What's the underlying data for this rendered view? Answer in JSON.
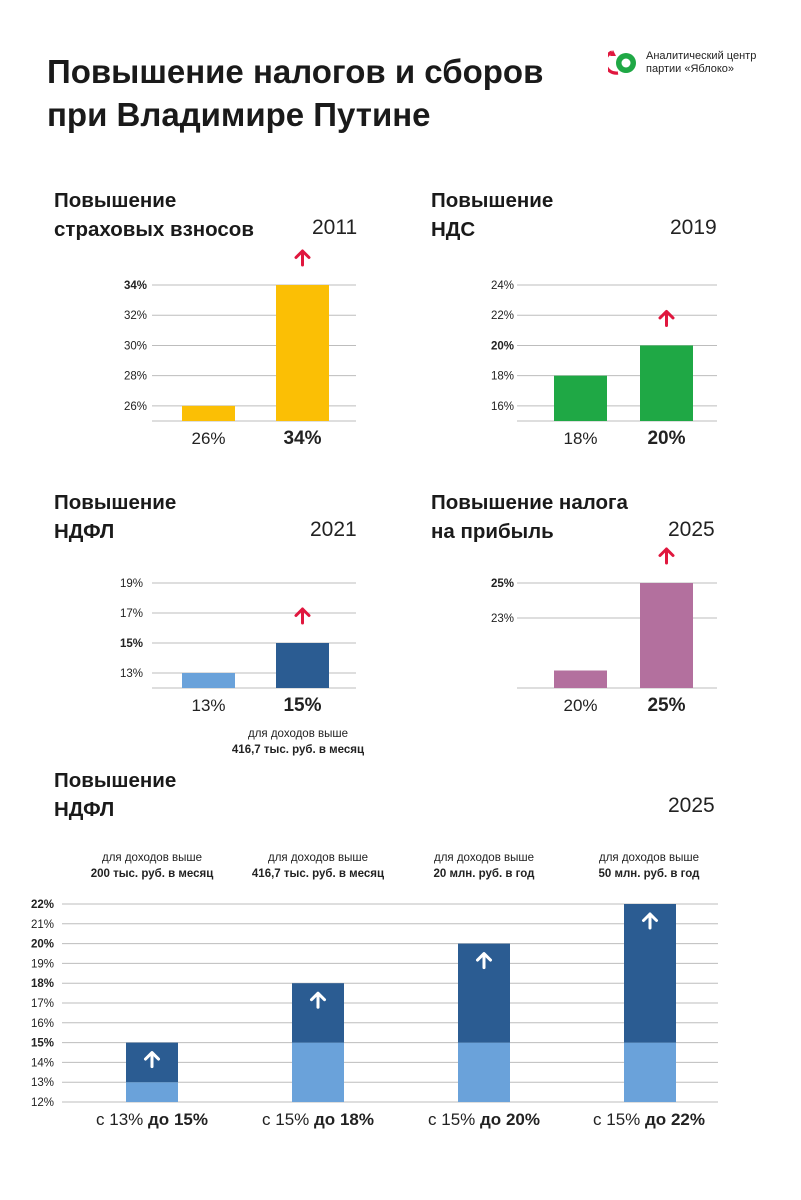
{
  "title": "Повышение налогов и сборов при Владимире Путине",
  "logo": {
    "line1": "Аналитический центр",
    "line2": "партии «Яблоко»",
    "icon": "yabloko-logo"
  },
  "colors": {
    "yellow": "#FBBF05",
    "green": "#1FA845",
    "navy": "#2B5C92",
    "lightblue": "#6AA2DA",
    "purple": "#B3709E",
    "arrow": "#E0173E",
    "grid": "#BDBDBD"
  },
  "sections": {
    "insurance": {
      "title_l1": "Повышение",
      "title_l2": "страховых взносов",
      "year": "2011"
    },
    "vat": {
      "title_l1": "Повышение",
      "title_l2": "НДС",
      "year": "2019"
    },
    "ndfl2021": {
      "title_l1": "Повышение",
      "title_l2": "НДФЛ",
      "year": "2021",
      "note_l1": "для доходов выше",
      "note_l2": "416,7 тыс. руб. в месяц"
    },
    "profit": {
      "title_l1": "Повышение налога",
      "title_l2": "на прибыль",
      "year": "2025"
    },
    "ndfl2025": {
      "title_l1": "Повышение",
      "title_l2": "НДФЛ",
      "year": "2025"
    }
  },
  "chart_data": [
    {
      "id": "insurance",
      "type": "bar",
      "title": "Повышение страховых взносов 2011",
      "categories": [
        "26%",
        "34%"
      ],
      "values": [
        26,
        34
      ],
      "ylim": [
        25,
        34
      ],
      "yticks": [
        {
          "v": 26,
          "label": "26%",
          "bold": false
        },
        {
          "v": 28,
          "label": "28%",
          "bold": false
        },
        {
          "v": 30,
          "label": "30%",
          "bold": false
        },
        {
          "v": 32,
          "label": "32%",
          "bold": false
        },
        {
          "v": 34,
          "label": "34%",
          "bold": true
        }
      ]
    },
    {
      "id": "vat",
      "type": "bar",
      "title": "Повышение НДС 2019",
      "categories": [
        "18%",
        "20%"
      ],
      "values": [
        18,
        20
      ],
      "ylim": [
        15,
        24
      ],
      "yticks": [
        {
          "v": 16,
          "label": "16%",
          "bold": false
        },
        {
          "v": 18,
          "label": "18%",
          "bold": false
        },
        {
          "v": 20,
          "label": "20%",
          "bold": true
        },
        {
          "v": 22,
          "label": "22%",
          "bold": false
        },
        {
          "v": 24,
          "label": "24%",
          "bold": false
        }
      ]
    },
    {
      "id": "ndfl2021",
      "type": "bar",
      "title": "Повышение НДФЛ 2021",
      "categories": [
        "13%",
        "15%"
      ],
      "values": [
        13,
        15
      ],
      "ylim": [
        12,
        19
      ],
      "yticks": [
        {
          "v": 13,
          "label": "13%",
          "bold": false
        },
        {
          "v": 15,
          "label": "15%",
          "bold": true
        },
        {
          "v": 17,
          "label": "17%",
          "bold": false
        },
        {
          "v": 19,
          "label": "19%",
          "bold": false
        }
      ]
    },
    {
      "id": "profit",
      "type": "bar",
      "title": "Повышение налога на прибыль 2025",
      "categories": [
        "20%",
        "25%"
      ],
      "values": [
        20,
        25
      ],
      "ylim": [
        19,
        25
      ],
      "yticks": [
        {
          "v": 23,
          "label": "23%",
          "bold": false
        },
        {
          "v": 25,
          "label": "25%",
          "bold": true
        }
      ]
    },
    {
      "id": "ndfl2025",
      "type": "bar",
      "stacked": true,
      "title": "Повышение НДФЛ 2025",
      "ylim": [
        12,
        22
      ],
      "yticks": [
        {
          "v": 12,
          "label": "12%",
          "bold": false
        },
        {
          "v": 13,
          "label": "13%",
          "bold": false
        },
        {
          "v": 14,
          "label": "14%",
          "bold": false
        },
        {
          "v": 15,
          "label": "15%",
          "bold": true
        },
        {
          "v": 16,
          "label": "16%",
          "bold": false
        },
        {
          "v": 17,
          "label": "17%",
          "bold": false
        },
        {
          "v": 18,
          "label": "18%",
          "bold": true
        },
        {
          "v": 19,
          "label": "19%",
          "bold": false
        },
        {
          "v": 20,
          "label": "20%",
          "bold": true
        },
        {
          "v": 21,
          "label": "21%",
          "bold": false
        },
        {
          "v": 22,
          "label": "22%",
          "bold": true
        }
      ],
      "groups": [
        {
          "note_l1": "для доходов выше",
          "note_l2": "200 тыс. руб. в месяц",
          "from": 13,
          "to": 15,
          "label_pre": "с 13%",
          "label_mid": "до",
          "label_val": "15%"
        },
        {
          "note_l1": "для доходов выше",
          "note_l2": "416,7 тыс. руб. в месяц",
          "from": 15,
          "to": 18,
          "label_pre": "с 15%",
          "label_mid": "до",
          "label_val": "18%"
        },
        {
          "note_l1": "для доходов выше",
          "note_l2": "20 млн. руб. в год",
          "from": 15,
          "to": 20,
          "label_pre": "с 15%",
          "label_mid": "до",
          "label_val": "20%"
        },
        {
          "note_l1": "для доходов выше",
          "note_l2": "50 млн. руб. в год",
          "from": 15,
          "to": 22,
          "label_pre": "с 15%",
          "label_mid": "до",
          "label_val": "22%"
        }
      ]
    }
  ]
}
